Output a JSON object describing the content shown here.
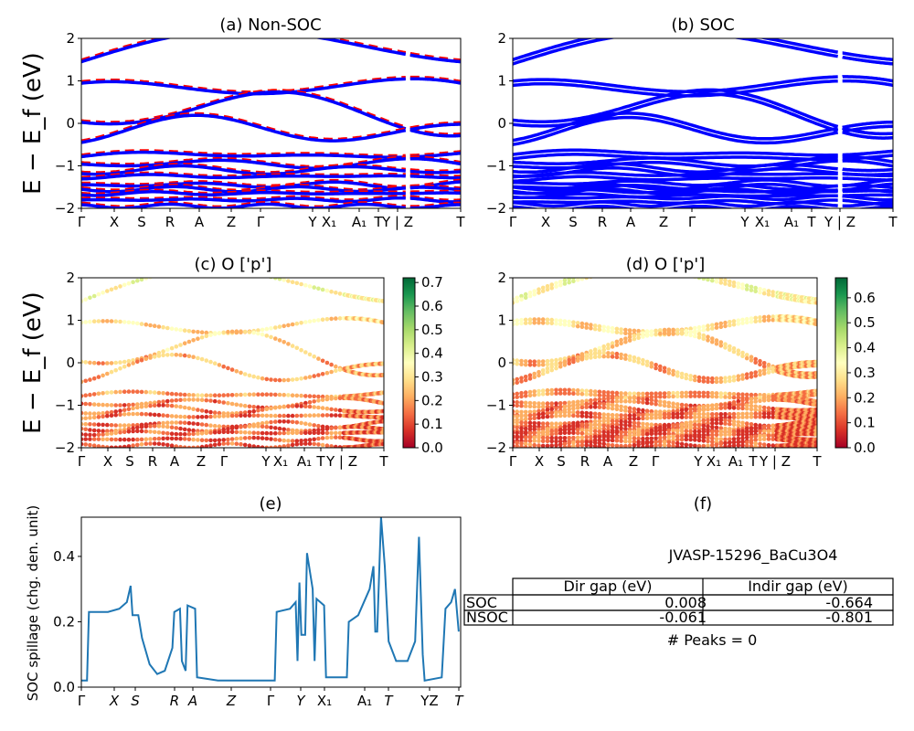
{
  "chart_data": [
    {
      "panel": "a",
      "type": "line",
      "title": "(a) Non-SOC",
      "ylabel": "E − E_f (eV)",
      "ylim": [
        -2,
        2
      ],
      "yticks": [
        "2",
        "1",
        "0",
        "−1",
        "−2"
      ],
      "kpath_labels": [
        "Γ",
        "X",
        "S",
        "R",
        "A",
        "Z",
        "Γ",
        "Y",
        "X₁",
        "A₁",
        "T",
        "Y | Z",
        "T"
      ],
      "series": [
        {
          "style": "spin-up solid",
          "color": "#0000ff"
        },
        {
          "style": "spin-down dashed",
          "color": "#ff0000"
        }
      ]
    },
    {
      "panel": "b",
      "type": "line",
      "title": "(b) SOC",
      "ylim": [
        -2,
        2
      ],
      "yticks": [
        "2",
        "1",
        "0",
        "−1",
        "−2"
      ],
      "kpath_labels": [
        "Γ",
        "X",
        "S",
        "R",
        "A",
        "Z",
        "Γ",
        "Y",
        "X₁",
        "A₁",
        "T",
        "Y | Z",
        "T"
      ],
      "series": [
        {
          "style": "solid",
          "color": "#0000ff"
        }
      ]
    },
    {
      "panel": "c",
      "type": "scatter",
      "title": "(c)  O ['p']",
      "ylabel": "E − E_f (eV)",
      "ylim": [
        -2,
        2
      ],
      "yticks": [
        "2",
        "1",
        "0",
        "−1",
        "−2"
      ],
      "kpath_labels": [
        "Γ",
        "X",
        "S",
        "R",
        "A",
        "Z",
        "Γ",
        "Y",
        "X₁",
        "A₁",
        "T",
        "Y | Z",
        "T"
      ],
      "colorbar": {
        "ticks": [
          "0.7",
          "0.6",
          "0.5",
          "0.4",
          "0.3",
          "0.2",
          "0.1",
          "0.0"
        ],
        "range": [
          0,
          0.72
        ]
      }
    },
    {
      "panel": "d",
      "type": "scatter",
      "title": "(d) O ['p']",
      "ylim": [
        -2,
        2
      ],
      "yticks": [
        "2",
        "1",
        "0",
        "−1",
        "−2"
      ],
      "kpath_labels": [
        "Γ",
        "X",
        "S",
        "R",
        "A",
        "Z",
        "Γ",
        "Y",
        "X₁",
        "A₁",
        "T",
        "Y | Z",
        "T"
      ],
      "colorbar": {
        "ticks": [
          "0.6",
          "0.5",
          "0.4",
          "0.3",
          "0.2",
          "0.1",
          "0.0"
        ],
        "range": [
          0,
          0.68
        ]
      }
    },
    {
      "panel": "e",
      "type": "line",
      "title": "(e)",
      "ylabel": "SOC spillage (chg. den. unit)",
      "ylim": [
        0,
        0.52
      ],
      "yticks": [
        "0.4",
        "0.2",
        "0.0"
      ],
      "kpath_labels": [
        "Γ",
        "X",
        "S",
        "R",
        "A",
        "Z",
        "Γ",
        "Y",
        "X₁",
        "A₁",
        "T",
        "YZ",
        "T"
      ],
      "series": [
        {
          "name": "",
          "color": "#1f77b4"
        }
      ]
    },
    {
      "panel": "f",
      "type": "table",
      "title": "(f)",
      "material": "JVASP-15296_BaCu3O4",
      "columns": [
        "",
        "Dir gap (eV)",
        "Indir gap (eV)"
      ],
      "rows": [
        [
          "SOC",
          "0.008",
          "-0.664"
        ],
        [
          "NSOC",
          "-0.061",
          "-0.801"
        ]
      ],
      "footer": "# Peaks = 0"
    }
  ]
}
